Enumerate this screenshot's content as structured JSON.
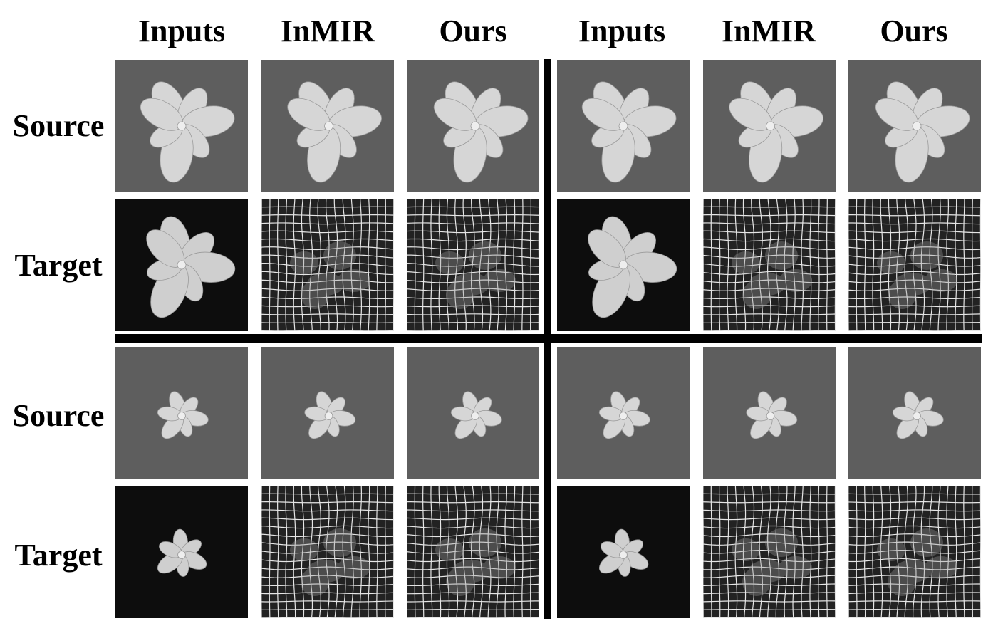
{
  "figure": {
    "column_headers": [
      "Inputs",
      "InMIR",
      "Ours",
      "Inputs",
      "InMIR",
      "Ours"
    ],
    "row_labels": [
      "Source",
      "Target",
      "Source",
      "Target"
    ],
    "panel_types": {
      "source": "gray-background plant image",
      "target": "dark-background plant image",
      "warp": "deformation grid overlay"
    },
    "colors": {
      "source_bg": "#5e5e5e",
      "target_bg": "#0d0d0d",
      "grid_bg": "#222222",
      "grid_line": "#e6e6e6",
      "leaf": "#d6d6d6",
      "divider": "#000000"
    }
  }
}
